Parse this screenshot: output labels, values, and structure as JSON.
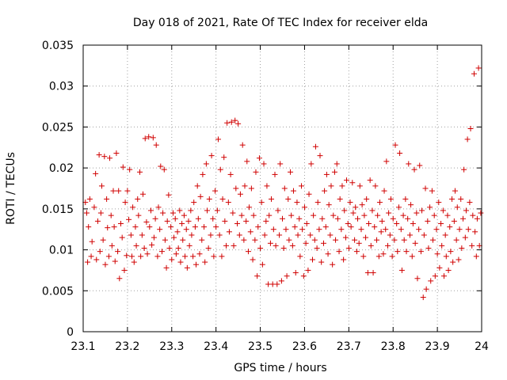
{
  "chart_data": {
    "type": "scatter",
    "title": "Day 018 of 2021, Rate Of TEC Index for receiver elda",
    "xlabel": "GPS time / hours",
    "ylabel": "ROTI / TECUs",
    "xlim": [
      23.1,
      24.0
    ],
    "ylim": [
      0,
      0.035
    ],
    "x_ticks": [
      23.1,
      23.2,
      23.3,
      23.4,
      23.5,
      23.6,
      23.7,
      23.8,
      23.9,
      24.0
    ],
    "x_tick_labels": [
      "23.1",
      "23.2",
      "23.3",
      "23.4",
      "23.5",
      "23.6",
      "23.7",
      "23.8",
      "23.9",
      "24"
    ],
    "y_ticks": [
      0,
      0.005,
      0.01,
      0.015,
      0.02,
      0.025,
      0.03,
      0.035
    ],
    "y_tick_labels": [
      "0",
      "0.005",
      "0.01",
      "0.015",
      "0.02",
      "0.025",
      "0.03",
      "0.035"
    ],
    "grid": true,
    "marker": "+",
    "series_color": "#d00000",
    "points": [
      [
        23.105,
        0.0158
      ],
      [
        23.108,
        0.0145
      ],
      [
        23.11,
        0.0085
      ],
      [
        23.112,
        0.0128
      ],
      [
        23.115,
        0.0162
      ],
      [
        23.118,
        0.0092
      ],
      [
        23.12,
        0.011
      ],
      [
        23.125,
        0.0152
      ],
      [
        23.128,
        0.0193
      ],
      [
        23.13,
        0.0088
      ],
      [
        23.133,
        0.0135
      ],
      [
        23.136,
        0.0216
      ],
      [
        23.138,
        0.0098
      ],
      [
        23.14,
        0.0145
      ],
      [
        23.142,
        0.0178
      ],
      [
        23.145,
        0.0112
      ],
      [
        23.148,
        0.0214
      ],
      [
        23.15,
        0.0082
      ],
      [
        23.153,
        0.0162
      ],
      [
        23.155,
        0.0127
      ],
      [
        23.158,
        0.0092
      ],
      [
        23.16,
        0.0212
      ],
      [
        23.163,
        0.0142
      ],
      [
        23.165,
        0.0105
      ],
      [
        23.168,
        0.0172
      ],
      [
        23.17,
        0.0128
      ],
      [
        23.172,
        0.0086
      ],
      [
        23.175,
        0.0218
      ],
      [
        23.178,
        0.0098
      ],
      [
        23.18,
        0.0172
      ],
      [
        23.182,
        0.0065
      ],
      [
        23.185,
        0.0132
      ],
      [
        23.188,
        0.0115
      ],
      [
        23.19,
        0.0201
      ],
      [
        23.193,
        0.0075
      ],
      [
        23.195,
        0.0158
      ],
      [
        23.198,
        0.0093
      ],
      [
        23.2,
        0.0172
      ],
      [
        23.203,
        0.0137
      ],
      [
        23.205,
        0.0198
      ],
      [
        23.208,
        0.0118
      ],
      [
        23.21,
        0.0092
      ],
      [
        23.212,
        0.0152
      ],
      [
        23.215,
        0.0085
      ],
      [
        23.218,
        0.0128
      ],
      [
        23.22,
        0.0105
      ],
      [
        23.223,
        0.0162
      ],
      [
        23.225,
        0.0142
      ],
      [
        23.228,
        0.0195
      ],
      [
        23.23,
        0.0092
      ],
      [
        23.233,
        0.0118
      ],
      [
        23.235,
        0.0168
      ],
      [
        23.238,
        0.0102
      ],
      [
        23.24,
        0.0236
      ],
      [
        23.243,
        0.0134
      ],
      [
        23.245,
        0.0095
      ],
      [
        23.248,
        0.0238
      ],
      [
        23.25,
        0.0128
      ],
      [
        23.253,
        0.0148
      ],
      [
        23.255,
        0.0106
      ],
      [
        23.258,
        0.0237
      ],
      [
        23.26,
        0.0115
      ],
      [
        23.263,
        0.0138
      ],
      [
        23.265,
        0.0228
      ],
      [
        23.268,
        0.0092
      ],
      [
        23.27,
        0.0152
      ],
      [
        23.273,
        0.0125
      ],
      [
        23.275,
        0.0202
      ],
      [
        23.278,
        0.0098
      ],
      [
        23.28,
        0.0145
      ],
      [
        23.283,
        0.0198
      ],
      [
        23.285,
        0.0112
      ],
      [
        23.288,
        0.0078
      ],
      [
        23.29,
        0.0135
      ],
      [
        23.293,
        0.0167
      ],
      [
        23.295,
        0.0102
      ],
      [
        23.298,
        0.0128
      ],
      [
        23.3,
        0.0088
      ],
      [
        23.303,
        0.0145
      ],
      [
        23.305,
        0.0115
      ],
      [
        23.308,
        0.0138
      ],
      [
        23.31,
        0.0095
      ],
      [
        23.313,
        0.0122
      ],
      [
        23.315,
        0.0102
      ],
      [
        23.318,
        0.0148
      ],
      [
        23.32,
        0.0085
      ],
      [
        23.323,
        0.0132
      ],
      [
        23.325,
        0.0112
      ],
      [
        23.328,
        0.0142
      ],
      [
        23.33,
        0.0092
      ],
      [
        23.333,
        0.0125
      ],
      [
        23.335,
        0.0078
      ],
      [
        23.338,
        0.0135
      ],
      [
        23.34,
        0.0105
      ],
      [
        23.343,
        0.0148
      ],
      [
        23.345,
        0.0118
      ],
      [
        23.348,
        0.0092
      ],
      [
        23.35,
        0.0158
      ],
      [
        23.353,
        0.0128
      ],
      [
        23.355,
        0.0082
      ],
      [
        23.358,
        0.0178
      ],
      [
        23.36,
        0.0138
      ],
      [
        23.363,
        0.0095
      ],
      [
        23.365,
        0.0165
      ],
      [
        23.368,
        0.0112
      ],
      [
        23.37,
        0.0192
      ],
      [
        23.373,
        0.0128
      ],
      [
        23.375,
        0.0085
      ],
      [
        23.378,
        0.0205
      ],
      [
        23.38,
        0.0148
      ],
      [
        23.383,
        0.0102
      ],
      [
        23.385,
        0.0162
      ],
      [
        23.388,
        0.0118
      ],
      [
        23.39,
        0.0215
      ],
      [
        23.393,
        0.0138
      ],
      [
        23.395,
        0.0092
      ],
      [
        23.398,
        0.0172
      ],
      [
        23.4,
        0.0128
      ],
      [
        23.403,
        0.0148
      ],
      [
        23.405,
        0.0235
      ],
      [
        23.408,
        0.0118
      ],
      [
        23.41,
        0.0198
      ],
      [
        23.413,
        0.0092
      ],
      [
        23.415,
        0.0162
      ],
      [
        23.418,
        0.0213
      ],
      [
        23.42,
        0.0135
      ],
      [
        23.423,
        0.0105
      ],
      [
        23.425,
        0.0255
      ],
      [
        23.428,
        0.0158
      ],
      [
        23.43,
        0.0122
      ],
      [
        23.433,
        0.0192
      ],
      [
        23.435,
        0.0256
      ],
      [
        23.438,
        0.0145
      ],
      [
        23.44,
        0.0105
      ],
      [
        23.443,
        0.0258
      ],
      [
        23.445,
        0.0175
      ],
      [
        23.448,
        0.0132
      ],
      [
        23.45,
        0.0254
      ],
      [
        23.453,
        0.0118
      ],
      [
        23.455,
        0.0168
      ],
      [
        23.458,
        0.0142
      ],
      [
        23.46,
        0.0228
      ],
      [
        23.463,
        0.0112
      ],
      [
        23.465,
        0.0178
      ],
      [
        23.468,
        0.0135
      ],
      [
        23.47,
        0.0208
      ],
      [
        23.473,
        0.0098
      ],
      [
        23.475,
        0.0152
      ],
      [
        23.478,
        0.0122
      ],
      [
        23.48,
        0.0175
      ],
      [
        23.483,
        0.0088
      ],
      [
        23.485,
        0.0142
      ],
      [
        23.488,
        0.0112
      ],
      [
        23.49,
        0.0195
      ],
      [
        23.493,
        0.0068
      ],
      [
        23.495,
        0.0128
      ],
      [
        23.498,
        0.0212
      ],
      [
        23.5,
        0.0102
      ],
      [
        23.503,
        0.0158
      ],
      [
        23.505,
        0.0082
      ],
      [
        23.508,
        0.0205
      ],
      [
        23.51,
        0.0118
      ],
      [
        23.513,
        0.0135
      ],
      [
        23.515,
        0.0178
      ],
      [
        23.518,
        0.0058
      ],
      [
        23.52,
        0.0142
      ],
      [
        23.523,
        0.0108
      ],
      [
        23.525,
        0.0162
      ],
      [
        23.528,
        0.0058
      ],
      [
        23.53,
        0.0125
      ],
      [
        23.533,
        0.0192
      ],
      [
        23.535,
        0.0105
      ],
      [
        23.538,
        0.0058
      ],
      [
        23.54,
        0.0148
      ],
      [
        23.543,
        0.0118
      ],
      [
        23.545,
        0.0205
      ],
      [
        23.548,
        0.0062
      ],
      [
        23.55,
        0.0138
      ],
      [
        23.553,
        0.0102
      ],
      [
        23.555,
        0.0175
      ],
      [
        23.558,
        0.0125
      ],
      [
        23.56,
        0.0068
      ],
      [
        23.563,
        0.0162
      ],
      [
        23.565,
        0.0112
      ],
      [
        23.568,
        0.0195
      ],
      [
        23.57,
        0.0142
      ],
      [
        23.573,
        0.0105
      ],
      [
        23.575,
        0.0172
      ],
      [
        23.578,
        0.0128
      ],
      [
        23.58,
        0.0072
      ],
      [
        23.583,
        0.0158
      ],
      [
        23.585,
        0.0118
      ],
      [
        23.588,
        0.0138
      ],
      [
        23.59,
        0.0092
      ],
      [
        23.593,
        0.0178
      ],
      [
        23.595,
        0.0125
      ],
      [
        23.598,
        0.0068
      ],
      [
        23.6,
        0.0152
      ],
      [
        23.603,
        0.0108
      ],
      [
        23.605,
        0.0132
      ],
      [
        23.608,
        0.0075
      ],
      [
        23.61,
        0.0168
      ],
      [
        23.613,
        0.0118
      ],
      [
        23.615,
        0.0205
      ],
      [
        23.618,
        0.0088
      ],
      [
        23.62,
        0.0142
      ],
      [
        23.623,
        0.0112
      ],
      [
        23.625,
        0.0226
      ],
      [
        23.628,
        0.0102
      ],
      [
        23.63,
        0.0158
      ],
      [
        23.633,
        0.0125
      ],
      [
        23.635,
        0.0215
      ],
      [
        23.638,
        0.0085
      ],
      [
        23.64,
        0.0138
      ],
      [
        23.643,
        0.0108
      ],
      [
        23.645,
        0.0172
      ],
      [
        23.648,
        0.0128
      ],
      [
        23.65,
        0.0192
      ],
      [
        23.653,
        0.0095
      ],
      [
        23.655,
        0.0155
      ],
      [
        23.658,
        0.0118
      ],
      [
        23.66,
        0.0178
      ],
      [
        23.663,
        0.0082
      ],
      [
        23.665,
        0.0142
      ],
      [
        23.668,
        0.0195
      ],
      [
        23.67,
        0.0112
      ],
      [
        23.673,
        0.0205
      ],
      [
        23.675,
        0.0138
      ],
      [
        23.678,
        0.0098
      ],
      [
        23.68,
        0.0162
      ],
      [
        23.683,
        0.0125
      ],
      [
        23.685,
        0.0178
      ],
      [
        23.688,
        0.0088
      ],
      [
        23.69,
        0.0148
      ],
      [
        23.693,
        0.0115
      ],
      [
        23.695,
        0.0185
      ],
      [
        23.698,
        0.0132
      ],
      [
        23.7,
        0.0102
      ],
      [
        23.703,
        0.0158
      ],
      [
        23.705,
        0.0128
      ],
      [
        23.708,
        0.0182
      ],
      [
        23.71,
        0.0145
      ],
      [
        23.713,
        0.0112
      ],
      [
        23.715,
        0.0152
      ],
      [
        23.718,
        0.0098
      ],
      [
        23.72,
        0.0138
      ],
      [
        23.723,
        0.0108
      ],
      [
        23.725,
        0.0178
      ],
      [
        23.728,
        0.0125
      ],
      [
        23.73,
        0.0155
      ],
      [
        23.733,
        0.0092
      ],
      [
        23.735,
        0.0142
      ],
      [
        23.738,
        0.0115
      ],
      [
        23.74,
        0.0162
      ],
      [
        23.743,
        0.0072
      ],
      [
        23.745,
        0.0132
      ],
      [
        23.748,
        0.0185
      ],
      [
        23.75,
        0.0105
      ],
      [
        23.753,
        0.0148
      ],
      [
        23.755,
        0.0072
      ],
      [
        23.758,
        0.0128
      ],
      [
        23.76,
        0.0178
      ],
      [
        23.763,
        0.0112
      ],
      [
        23.765,
        0.0142
      ],
      [
        23.768,
        0.0092
      ],
      [
        23.77,
        0.0158
      ],
      [
        23.773,
        0.0122
      ],
      [
        23.775,
        0.0135
      ],
      [
        23.778,
        0.0095
      ],
      [
        23.78,
        0.0172
      ],
      [
        23.783,
        0.0125
      ],
      [
        23.785,
        0.0208
      ],
      [
        23.788,
        0.0105
      ],
      [
        23.79,
        0.0145
      ],
      [
        23.793,
        0.0118
      ],
      [
        23.795,
        0.0162
      ],
      [
        23.798,
        0.0092
      ],
      [
        23.8,
        0.0138
      ],
      [
        23.803,
        0.0112
      ],
      [
        23.805,
        0.0228
      ],
      [
        23.808,
        0.0132
      ],
      [
        23.81,
        0.0098
      ],
      [
        23.813,
        0.0152
      ],
      [
        23.815,
        0.0218
      ],
      [
        23.818,
        0.0125
      ],
      [
        23.82,
        0.0075
      ],
      [
        23.823,
        0.0142
      ],
      [
        23.825,
        0.0112
      ],
      [
        23.828,
        0.0162
      ],
      [
        23.83,
        0.0098
      ],
      [
        23.833,
        0.0138
      ],
      [
        23.835,
        0.0205
      ],
      [
        23.838,
        0.0118
      ],
      [
        23.84,
        0.0155
      ],
      [
        23.843,
        0.0092
      ],
      [
        23.845,
        0.0132
      ],
      [
        23.848,
        0.0198
      ],
      [
        23.85,
        0.0108
      ],
      [
        23.853,
        0.0145
      ],
      [
        23.855,
        0.0065
      ],
      [
        23.858,
        0.0125
      ],
      [
        23.86,
        0.0203
      ],
      [
        23.863,
        0.0098
      ],
      [
        23.865,
        0.0148
      ],
      [
        23.868,
        0.0042
      ],
      [
        23.87,
        0.0118
      ],
      [
        23.873,
        0.0175
      ],
      [
        23.875,
        0.0052
      ],
      [
        23.878,
        0.0135
      ],
      [
        23.88,
        0.0102
      ],
      [
        23.883,
        0.0152
      ],
      [
        23.885,
        0.0062
      ],
      [
        23.888,
        0.0172
      ],
      [
        23.89,
        0.0112
      ],
      [
        23.893,
        0.0142
      ],
      [
        23.895,
        0.0068
      ],
      [
        23.898,
        0.0125
      ],
      [
        23.9,
        0.0095
      ],
      [
        23.903,
        0.0158
      ],
      [
        23.905,
        0.0078
      ],
      [
        23.908,
        0.0132
      ],
      [
        23.91,
        0.0105
      ],
      [
        23.913,
        0.0148
      ],
      [
        23.915,
        0.0068
      ],
      [
        23.918,
        0.0118
      ],
      [
        23.92,
        0.0092
      ],
      [
        23.923,
        0.0142
      ],
      [
        23.925,
        0.0075
      ],
      [
        23.928,
        0.0128
      ],
      [
        23.93,
        0.0098
      ],
      [
        23.933,
        0.0162
      ],
      [
        23.935,
        0.0085
      ],
      [
        23.938,
        0.0135
      ],
      [
        23.94,
        0.0172
      ],
      [
        23.943,
        0.0112
      ],
      [
        23.945,
        0.0152
      ],
      [
        23.948,
        0.0088
      ],
      [
        23.95,
        0.0125
      ],
      [
        23.953,
        0.0162
      ],
      [
        23.955,
        0.0102
      ],
      [
        23.958,
        0.0138
      ],
      [
        23.96,
        0.0198
      ],
      [
        23.963,
        0.0115
      ],
      [
        23.965,
        0.0148
      ],
      [
        23.968,
        0.0235
      ],
      [
        23.97,
        0.0125
      ],
      [
        23.973,
        0.0158
      ],
      [
        23.975,
        0.0248
      ],
      [
        23.978,
        0.0105
      ],
      [
        23.98,
        0.0142
      ],
      [
        23.983,
        0.0315
      ],
      [
        23.985,
        0.0122
      ],
      [
        23.988,
        0.0092
      ],
      [
        23.99,
        0.0138
      ],
      [
        23.993,
        0.0322
      ],
      [
        23.995,
        0.0105
      ],
      [
        23.998,
        0.0145
      ]
    ]
  }
}
